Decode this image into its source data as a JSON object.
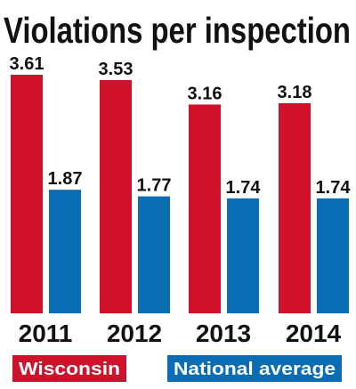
{
  "chart_data": {
    "type": "bar",
    "title": "Violations per inspection",
    "categories": [
      "2011",
      "2012",
      "2013",
      "2014"
    ],
    "series": [
      {
        "name": "Wisconsin",
        "values": [
          3.61,
          3.53,
          3.16,
          3.18
        ],
        "color": "#d0112b"
      },
      {
        "name": "National average",
        "values": [
          1.87,
          1.77,
          1.74,
          1.74
        ],
        "color": "#0a6db4"
      }
    ],
    "value_labels": [
      [
        "3.61",
        "3.53",
        "3.16",
        "3.18"
      ],
      [
        "1.87",
        "1.77",
        "1.74",
        "1.74"
      ]
    ],
    "ylim": [
      0,
      3.61
    ],
    "grid": false,
    "legend_position": "bottom"
  }
}
